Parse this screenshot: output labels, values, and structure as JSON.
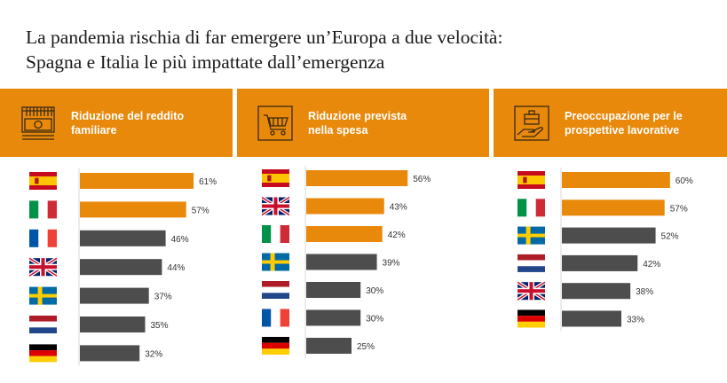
{
  "title_line1": "La pandemia rischia di far emergere un’Europa a due velocità:",
  "title_line2": "Spagna e Italia le più impattate dall’emergenza",
  "colors": {
    "highlight": "#e8890c",
    "default": "#4d4d4d",
    "header_bg": "#e8890c"
  },
  "panels": [
    {
      "label": "Riduzione del reddito\nfamiliare",
      "icon": "money-icon"
    },
    {
      "label": "Riduzione prevista\nnella spesa",
      "icon": "shopping-cart-icon"
    },
    {
      "label": "Preoccupazione per le\nprospettive lavorative",
      "icon": "briefcase-hand-icon"
    }
  ],
  "chart_data": [
    {
      "type": "bar",
      "orientation": "horizontal",
      "categories": [
        "spain-flag",
        "italy-flag",
        "france-flag",
        "uk-flag",
        "sweden-flag",
        "netherlands-flag",
        "germany-flag"
      ],
      "values": [
        61,
        57,
        46,
        44,
        37,
        35,
        32
      ],
      "labels": [
        "61%",
        "57%",
        "46%",
        "44%",
        "37%",
        "35%",
        "32%"
      ],
      "highlight": [
        true,
        true,
        false,
        false,
        false,
        false,
        false
      ]
    },
    {
      "type": "bar",
      "orientation": "horizontal",
      "categories": [
        "spain-flag",
        "uk-flag",
        "italy-flag",
        "sweden-flag",
        "netherlands-flag",
        "france-flag",
        "germany-flag"
      ],
      "values": [
        56,
        43,
        42,
        39,
        30,
        30,
        25
      ],
      "labels": [
        "56%",
        "43%",
        "42%",
        "39%",
        "30%",
        "30%",
        "25%"
      ],
      "highlight": [
        true,
        true,
        true,
        false,
        false,
        false,
        false
      ]
    },
    {
      "type": "bar",
      "orientation": "horizontal",
      "categories": [
        "spain-flag",
        "italy-flag",
        "sweden-flag",
        "netherlands-flag",
        "uk-flag",
        "germany-flag"
      ],
      "values": [
        60,
        57,
        52,
        42,
        38,
        33
      ],
      "labels": [
        "60%",
        "57%",
        "52%",
        "42%",
        "38%",
        "33%"
      ],
      "highlight": [
        true,
        true,
        false,
        false,
        false,
        false
      ]
    }
  ]
}
